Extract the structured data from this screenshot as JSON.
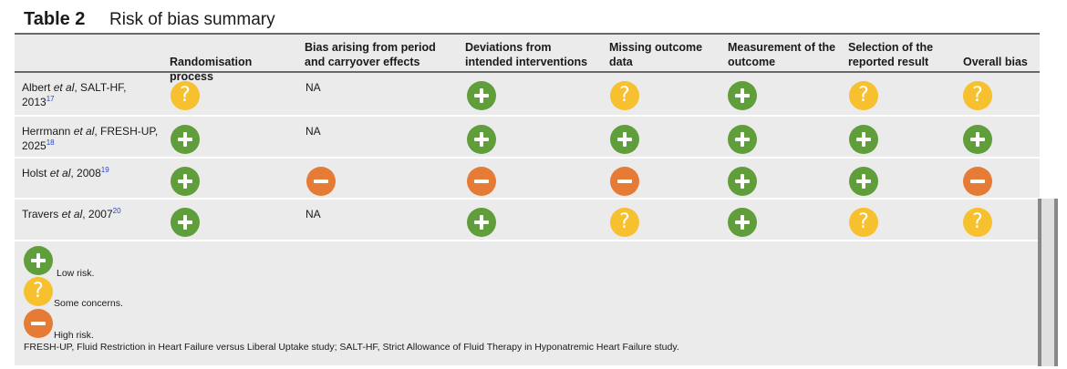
{
  "table": {
    "number": "Table 2",
    "title": "Risk of bias summary",
    "headers": [
      "Randomisation process",
      "Bias arising from period and carryover effects",
      "Deviations from intended interventions",
      "Missing outcome data",
      "Measurement of the outcome",
      "Selection of the reported result",
      "Overall bias"
    ],
    "rows": [
      {
        "study_author": "Albert",
        "study_etal": "et al",
        "study_rest": ", SALT-HF, 2013",
        "ref": "17",
        "cells": [
          "some",
          "NA",
          "low",
          "some",
          "low",
          "some",
          "some"
        ]
      },
      {
        "study_author": "Herrmann",
        "study_etal": "et al",
        "study_rest": ", FRESH-UP, 2025",
        "ref": "18",
        "cells": [
          "low",
          "NA",
          "low",
          "low",
          "low",
          "low",
          "low"
        ]
      },
      {
        "study_author": "Holst",
        "study_etal": "et al",
        "study_rest": ", 2008",
        "ref": "19",
        "cells": [
          "low",
          "high",
          "high",
          "high",
          "low",
          "low",
          "high"
        ]
      },
      {
        "study_author": "Travers",
        "study_etal": "et al",
        "study_rest": ", 2007",
        "ref": "20",
        "cells": [
          "low",
          "NA",
          "low",
          "some",
          "low",
          "some",
          "some"
        ]
      }
    ],
    "legend": {
      "low": "Low risk.",
      "some": "Some concerns.",
      "high": "High risk."
    },
    "footnote": "FRESH-UP, Fluid Restriction in Heart Failure versus Liberal Uptake study; SALT-HF, Strict Allowance of Fluid Therapy in Hyponatremic Heart Failure study.",
    "icons": {
      "low": "plus-icon",
      "some": "question-icon",
      "high": "minus-icon"
    },
    "colors": {
      "low": "#5f9e3a",
      "some": "#f6c02e",
      "high": "#e67b35"
    }
  }
}
